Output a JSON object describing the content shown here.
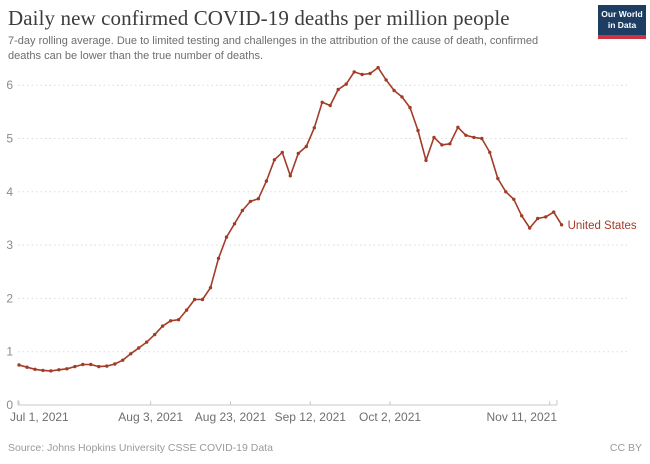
{
  "header": {
    "title": "Daily new confirmed COVID-19 deaths per million people",
    "subtitle": "7-day rolling average. Due to limited testing and challenges in the attribution of the cause of death, confirmed deaths can be lower than the true number of deaths.",
    "logo": {
      "line1": "Our World",
      "line2": "in Data",
      "bg_color": "#1d3d63",
      "accent_color": "#cc3344"
    }
  },
  "chart_data": {
    "type": "line",
    "title": "Daily new confirmed COVID-19 deaths per million people",
    "subtitle": "7-day rolling average. Due to limited testing and challenges in the attribution of the cause of death, confirmed deaths can be lower than the true number of deaths.",
    "xlabel": "",
    "ylabel": "",
    "ylim": [
      0,
      6.6
    ],
    "grid": "horizontal-dotted",
    "legend_position": "end-of-line-label",
    "x_start_date": "2021-07-01",
    "x_end_date": "2021-11-12",
    "interval_days": 2,
    "x_tick_labels": [
      "Jul 1, 2021",
      "Aug 3, 2021",
      "Aug 23, 2021",
      "Sep 12, 2021",
      "Oct 2, 2021",
      "Nov 11, 2021"
    ],
    "x_tick_day_offsets": [
      0,
      33,
      53,
      73,
      93,
      133
    ],
    "y_ticks": [
      0,
      1,
      2,
      3,
      4,
      5,
      6
    ],
    "series": [
      {
        "name": "United States",
        "color": "#a23c27",
        "values": [
          0.75,
          0.71,
          0.67,
          0.65,
          0.64,
          0.66,
          0.68,
          0.72,
          0.76,
          0.76,
          0.72,
          0.73,
          0.77,
          0.84,
          0.96,
          1.07,
          1.18,
          1.32,
          1.48,
          1.58,
          1.6,
          1.78,
          1.98,
          1.98,
          2.2,
          2.75,
          3.15,
          3.4,
          3.65,
          3.82,
          3.87,
          4.2,
          4.6,
          4.74,
          4.3,
          4.72,
          4.85,
          5.2,
          5.68,
          5.62,
          5.92,
          6.02,
          6.25,
          6.2,
          6.22,
          6.33,
          6.1,
          5.9,
          5.78,
          5.58,
          5.15,
          4.59,
          5.02,
          4.88,
          4.9,
          5.21,
          5.06,
          5.02,
          5.0,
          4.74,
          4.25,
          4.0,
          3.86,
          3.55,
          3.32,
          3.5,
          3.53,
          3.62,
          3.38
        ]
      }
    ]
  },
  "footer": {
    "source": "Source: Johns Hopkins University CSSE COVID-19 Data",
    "license": "CC BY"
  }
}
